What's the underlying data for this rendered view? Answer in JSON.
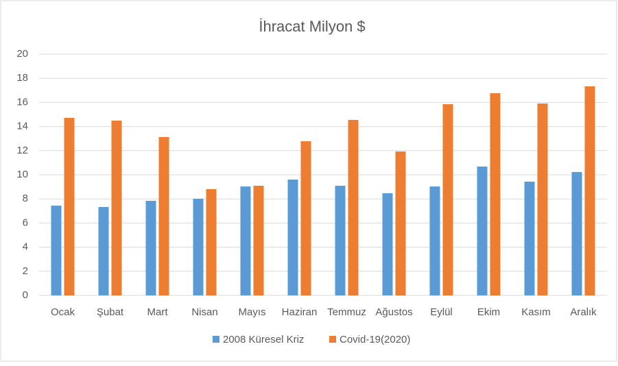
{
  "chart_data": {
    "type": "bar",
    "title": "İhracat Milyon $",
    "categories": [
      "Ocak",
      "Şubat",
      "Mart",
      "Nisan",
      "Mayıs",
      "Haziran",
      "Temmuz",
      "Ağustos",
      "Eylül",
      "Ekim",
      "Kasım",
      "Aralık"
    ],
    "series": [
      {
        "name": "2008 Küresel Kriz",
        "color": "#5b9bd5",
        "values": [
          7.44,
          7.33,
          7.84,
          8.01,
          9.03,
          9.6,
          9.09,
          8.47,
          9.03,
          10.68,
          9.43,
          10.23
        ]
      },
      {
        "name": "Covid-19(2020)",
        "color": "#ed7d31",
        "values": [
          14.72,
          14.49,
          13.13,
          8.81,
          9.09,
          12.78,
          14.55,
          11.93,
          15.85,
          16.76,
          15.91,
          17.33
        ]
      }
    ],
    "ylim": [
      0,
      20
    ],
    "yticks": [
      0,
      2,
      4,
      6,
      8,
      10,
      12,
      14,
      16,
      18,
      20
    ],
    "grid": true,
    "legend": "bottom"
  }
}
